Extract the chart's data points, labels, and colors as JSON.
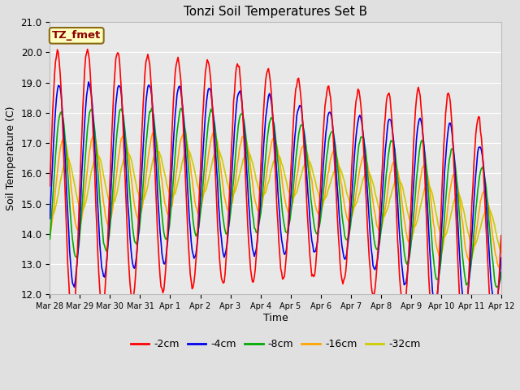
{
  "title": "Tonzi Soil Temperatures Set B",
  "xlabel": "Time",
  "ylabel": "Soil Temperature (C)",
  "ylim": [
    12.0,
    21.0
  ],
  "yticks": [
    12.0,
    13.0,
    14.0,
    15.0,
    16.0,
    17.0,
    18.0,
    19.0,
    20.0,
    21.0
  ],
  "xtick_labels": [
    "Mar 28",
    "Mar 29",
    "Mar 30",
    "Mar 31",
    "Apr 1",
    "Apr 2",
    "Apr 3",
    "Apr 4",
    "Apr 5",
    "Apr 6",
    "Apr 7",
    "Apr 8",
    "Apr 9",
    "Apr 10",
    "Apr 11",
    "Apr 12"
  ],
  "annotation_text": "TZ_fmet",
  "annotation_color": "#8B0000",
  "annotation_bg": "#FFFFC0",
  "annotation_border": "#8B6914",
  "fig_bg": "#E0E0E0",
  "plot_bg": "#E8E8E8",
  "grid_color": "#FFFFFF",
  "line_colors": {
    "-2cm": "#FF0000",
    "-4cm": "#0000EE",
    "-8cm": "#00AA00",
    "-16cm": "#FFA500",
    "-32cm": "#CCCC00"
  },
  "legend_labels": [
    "-2cm",
    "-4cm",
    "-8cm",
    "-16cm",
    "-32cm"
  ],
  "n_points": 480
}
